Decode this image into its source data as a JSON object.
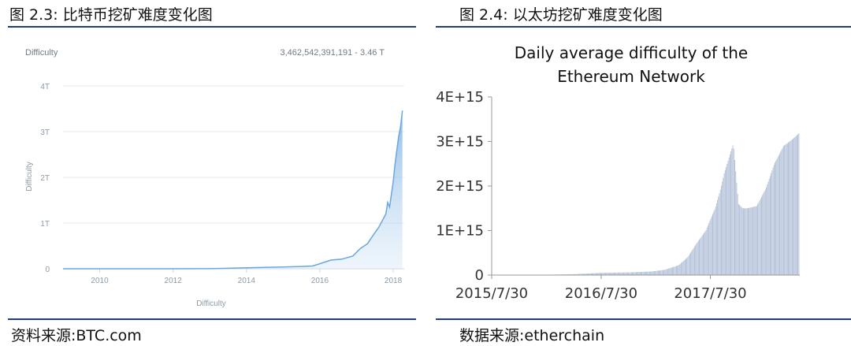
{
  "figures": {
    "left_title": "图 2.3: 比特币挖矿难度变化图",
    "right_title": "图 2.4: 以太坊挖矿难度变化图",
    "left_source": "资料来源:BTC.com",
    "right_source": "数据来源:etherchain"
  },
  "colors": {
    "rule": "#233d7b",
    "btc_line": "#6aa6df",
    "btc_fill": "#cfe3f5",
    "eth_bar": "#aebdd6"
  },
  "chart_data": [
    {
      "type": "area",
      "title": "Difficulty",
      "readout": "3,462,542,391,191 - 3.46 T",
      "xlabel": "Difficulty",
      "ylabel": "Difficulty",
      "xlim": [
        2009.0,
        2018.3
      ],
      "ylim": [
        0,
        4
      ],
      "x_ticks": [
        2010,
        2012,
        2014,
        2016,
        2018
      ],
      "x_tick_labels": [
        "2010",
        "2012",
        "2014",
        "2016",
        "2018"
      ],
      "y_ticks": [
        0,
        1,
        2,
        3,
        4
      ],
      "y_tick_labels": [
        "0",
        "1T",
        "2T",
        "3T",
        "4T"
      ],
      "grid": true,
      "series": [
        {
          "x": [
            2009.0,
            2012.0,
            2013.0,
            2013.5,
            2014.0,
            2014.5,
            2015.0,
            2015.5,
            2015.8,
            2016.0,
            2016.3,
            2016.6,
            2016.9,
            2017.1,
            2017.3,
            2017.5,
            2017.6,
            2017.7,
            2017.8,
            2017.85,
            2017.9,
            2018.0,
            2018.05,
            2018.1,
            2018.15,
            2018.2,
            2018.25
          ],
          "y": [
            0.0,
            0.0,
            0.002,
            0.01,
            0.02,
            0.03,
            0.04,
            0.05,
            0.06,
            0.11,
            0.19,
            0.21,
            0.28,
            0.44,
            0.55,
            0.79,
            0.9,
            1.05,
            1.2,
            1.45,
            1.35,
            1.9,
            2.3,
            2.6,
            2.9,
            3.1,
            3.46
          ]
        }
      ]
    },
    {
      "type": "bar",
      "title_lines": [
        "Daily average difficulty of the",
        "Ethereum Network"
      ],
      "ylim": [
        0,
        4000000000000000.0
      ],
      "y_ticks": [
        0,
        1000000000000000.0,
        2000000000000000.0,
        3000000000000000.0,
        4000000000000000.0
      ],
      "y_tick_labels": [
        "0",
        "1E+15",
        "2E+15",
        "3E+15",
        "4E+15"
      ],
      "x_tick_labels": [
        "2015/7/30",
        "2016/7/30",
        "2017/7/30"
      ],
      "x_tick_dates": [
        "2015-07-30",
        "2016-07-30",
        "2017-07-30"
      ],
      "x_start": "2015-07-30",
      "x_end": "2018-05-25",
      "grid": false,
      "series": [
        {
          "x": [
            "2015-07-30",
            "2016-01-15",
            "2016-05-01",
            "2016-08-01",
            "2016-11-01",
            "2017-01-15",
            "2017-03-01",
            "2017-04-15",
            "2017-05-15",
            "2017-06-15",
            "2017-07-15",
            "2017-08-15",
            "2017-09-01",
            "2017-09-15",
            "2017-10-01",
            "2017-10-15",
            "2017-11-01",
            "2017-11-15",
            "2017-12-01",
            "2018-01-01",
            "2018-02-01",
            "2018-03-01",
            "2018-04-01",
            "2018-05-01",
            "2018-05-25"
          ],
          "values": [
            0.0,
            5000000000000.0,
            20000000000000.0,
            50000000000000.0,
            60000000000000.0,
            80000000000000.0,
            120000000000000.0,
            220000000000000.0,
            400000000000000.0,
            720000000000000.0,
            1000000000000000.0,
            1500000000000000.0,
            1900000000000000.0,
            2300000000000000.0,
            2650000000000000.0,
            2950000000000000.0,
            1600000000000000.0,
            1500000000000000.0,
            1500000000000000.0,
            1550000000000000.0,
            1950000000000000.0,
            2500000000000000.0,
            2900000000000000.0,
            3050000000000000.0,
            3200000000000000.0
          ]
        }
      ]
    }
  ]
}
